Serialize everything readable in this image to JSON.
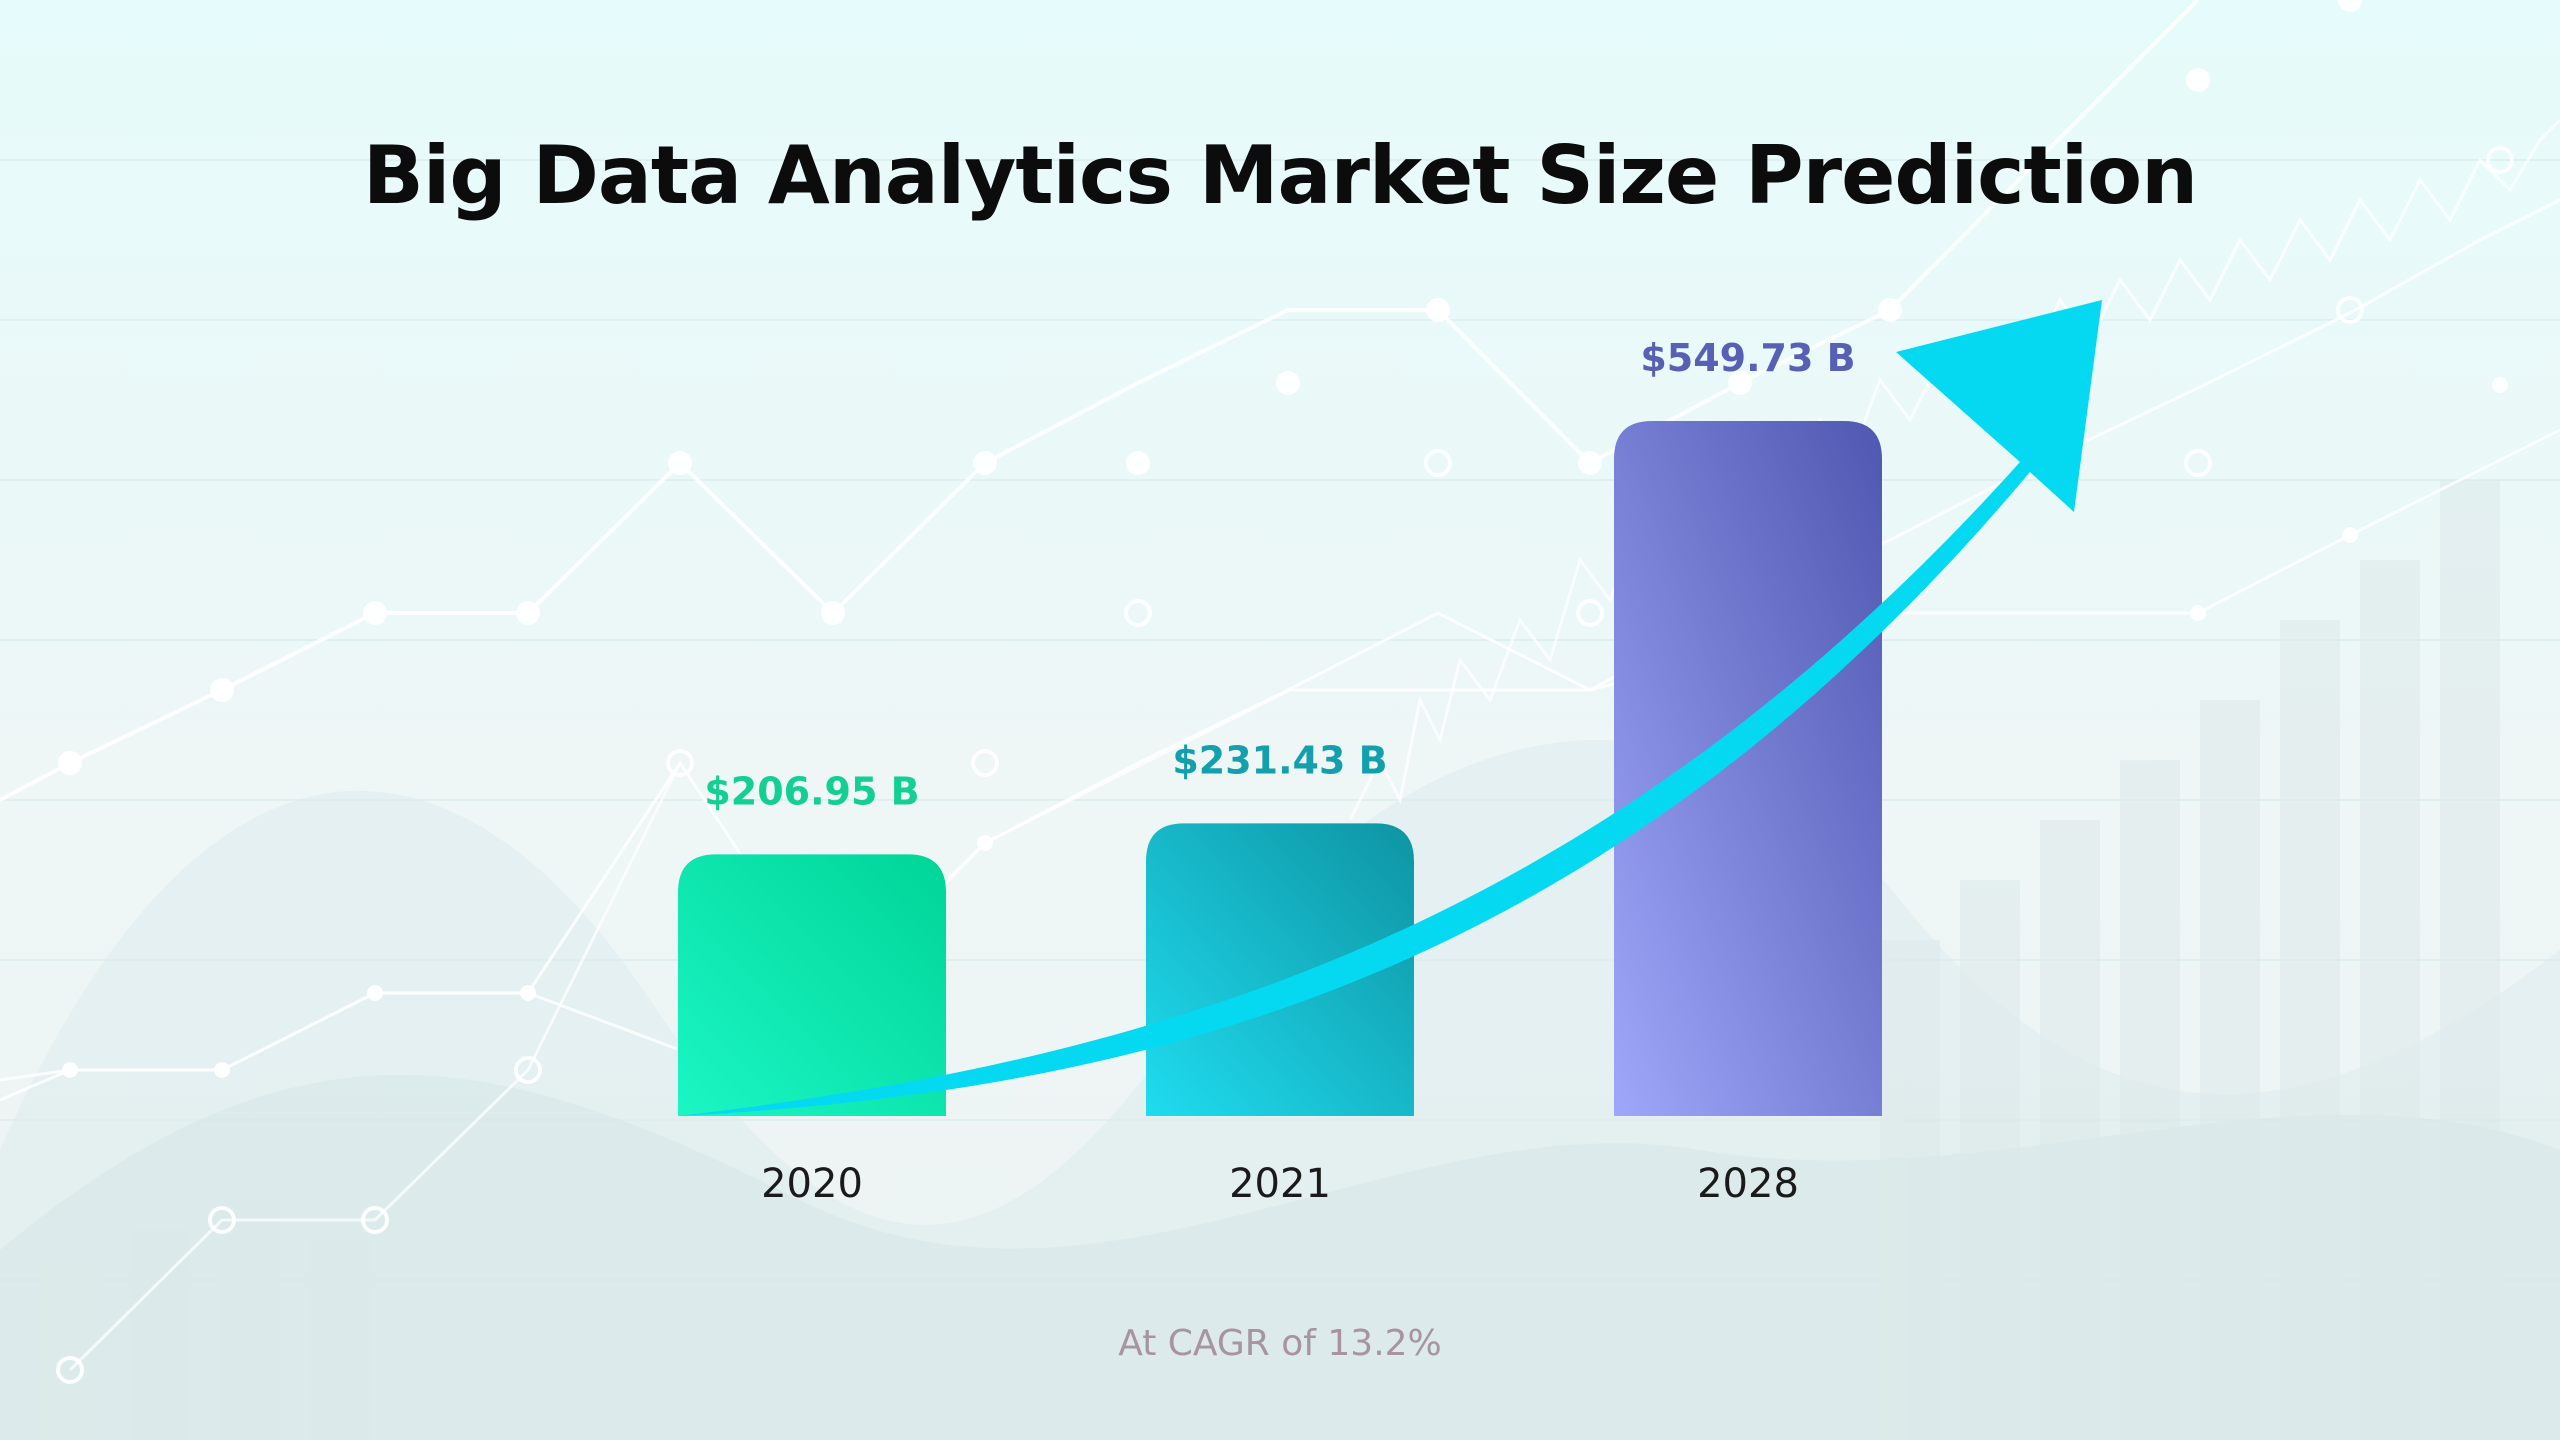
{
  "chart_data": {
    "type": "bar",
    "title": "Big Data Analytics Market Size Prediction",
    "categories": [
      "2020",
      "2021",
      "2028"
    ],
    "values": [
      206.95,
      231.43,
      549.73
    ],
    "value_labels": [
      "$206.95 B",
      "$231.43 B",
      "$549.73 B"
    ],
    "xlabel": "",
    "ylabel": "",
    "grid": false,
    "legend": "none",
    "annotation": "At CAGR of 13.2%",
    "colors": {
      "bar_2020": [
        "#1bf6c4",
        "#00d598"
      ],
      "bar_2021": [
        "#1fdcef",
        "#0e94a3"
      ],
      "bar_2028": [
        "#9ea7f9",
        "#4f57b0"
      ],
      "label_2020": "#14cf92",
      "label_2021": "#13a0ac",
      "label_2028": "#5760b3",
      "arrow": "#05d9f2"
    }
  }
}
